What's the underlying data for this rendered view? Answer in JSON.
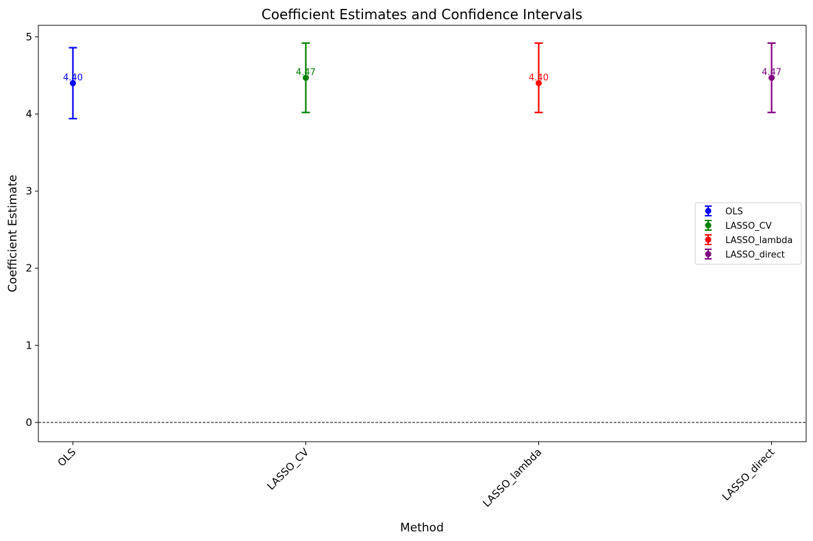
{
  "chart_data": {
    "type": "errorbar",
    "title": "Coefficient Estimates and Confidence Intervals",
    "xlabel": "Method",
    "ylabel": "Coefficient Estimate",
    "categories": [
      "OLS",
      "LASSO_CV",
      "LASSO_lambda",
      "LASSO_direct"
    ],
    "ylim": [
      -0.25,
      5.15
    ],
    "yticks": [
      0,
      1,
      2,
      3,
      4,
      5
    ],
    "grid": false,
    "reference_line": {
      "y": 0,
      "style": "dashed",
      "color": "#000000"
    },
    "legend_position": "center-right",
    "series": [
      {
        "name": "OLS",
        "estimate": 4.4,
        "ci_low": 3.94,
        "ci_high": 4.86,
        "label": "4.40",
        "color": "#0000ff"
      },
      {
        "name": "LASSO_CV",
        "estimate": 4.47,
        "ci_low": 4.02,
        "ci_high": 4.92,
        "label": "4.47",
        "color": "#008000"
      },
      {
        "name": "LASSO_lambda",
        "estimate": 4.4,
        "ci_low": 4.02,
        "ci_high": 4.92,
        "label": "4.40",
        "color": "#ff0000"
      },
      {
        "name": "LASSO_direct",
        "estimate": 4.47,
        "ci_low": 4.02,
        "ci_high": 4.92,
        "label": "4.47",
        "color": "#800080"
      }
    ]
  }
}
